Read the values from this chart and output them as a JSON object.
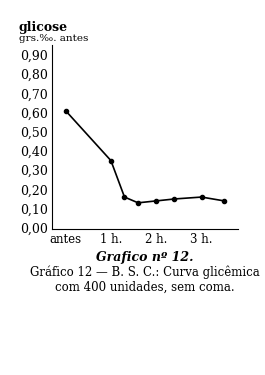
{
  "title_label": "Grafico nº 12.",
  "caption": "Gráfico 12 — B. S. C.: Curva glicêmica\ncom 400 unidades, sem coma.",
  "ylabel_top": "glicose",
  "ylabel_unit": "grs.%o. antes",
  "x_labels": [
    "antes",
    "1 h.",
    "2 h.",
    "3 h."
  ],
  "x_positions": [
    0,
    1,
    2,
    3
  ],
  "y_ticks": [
    0.0,
    0.1,
    0.2,
    0.3,
    0.4,
    0.5,
    0.6,
    0.7,
    0.8,
    0.9
  ],
  "data_x": [
    0,
    1,
    1.3,
    1.6,
    2.0,
    2.4,
    3.0,
    3.5
  ],
  "data_y": [
    0.61,
    0.35,
    0.16,
    0.13,
    0.14,
    0.15,
    0.16,
    0.14
  ],
  "line_color": "#000000",
  "marker": ".",
  "marker_size": 6,
  "background_color": "#ffffff",
  "fig_width": 2.65,
  "fig_height": 3.75,
  "dpi": 100
}
